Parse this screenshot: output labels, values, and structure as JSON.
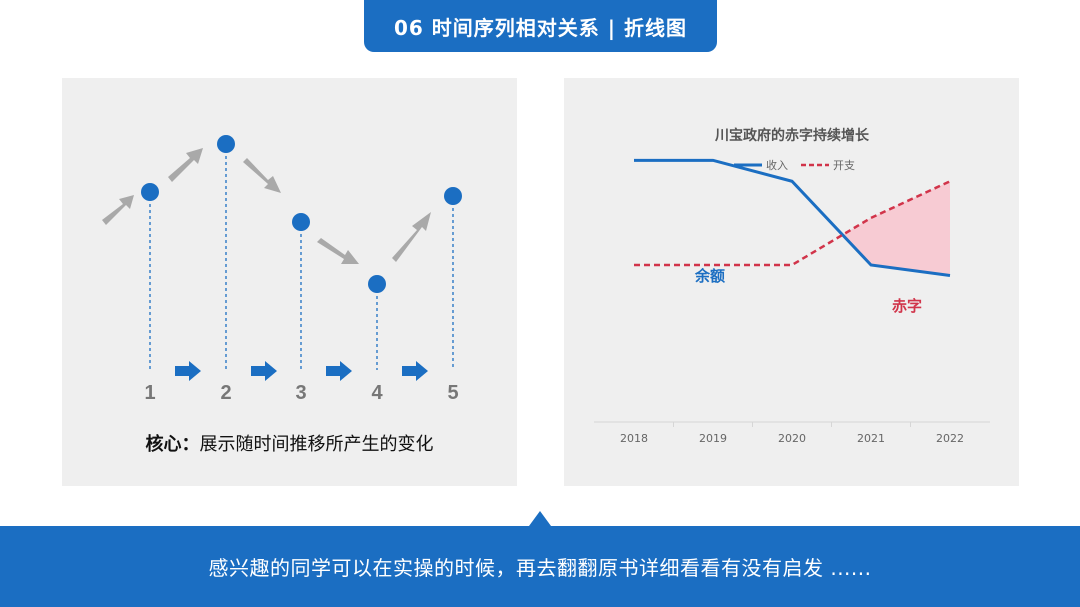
{
  "header": {
    "title": "06  时间序列相对关系 | 折线图"
  },
  "left_panel": {
    "steps": [
      "1",
      "2",
      "3",
      "4",
      "5"
    ],
    "core_label": "核心：",
    "core_text": "展示随时间推移所产生的变化"
  },
  "chart_data": {
    "type": "line",
    "title": "川宝政府的赤字持续增长",
    "x": [
      "2018",
      "2019",
      "2020",
      "2021",
      "2022"
    ],
    "series": [
      {
        "name": "收入",
        "values": [
          5.0,
          5.0,
          4.6,
          3.0,
          2.8
        ],
        "color": "#1b6ec2",
        "style": "solid"
      },
      {
        "name": "开支",
        "values": [
          3.0,
          3.0,
          3.0,
          3.9,
          4.6
        ],
        "color": "#d1344a",
        "style": "dashed"
      }
    ],
    "ylim": [
      0,
      6
    ],
    "annotations": [
      {
        "text": "余额",
        "color": "#1b6ec2"
      },
      {
        "text": "赤字",
        "color": "#d1344a"
      }
    ],
    "legend": "top-center",
    "grid": false,
    "fill_between": {
      "from": "2020",
      "color": "#f7cbd3"
    }
  },
  "footer": {
    "text": "感兴趣的同学可以在实操的时候，再去翻翻原书详细看看有没有启发 ......"
  }
}
